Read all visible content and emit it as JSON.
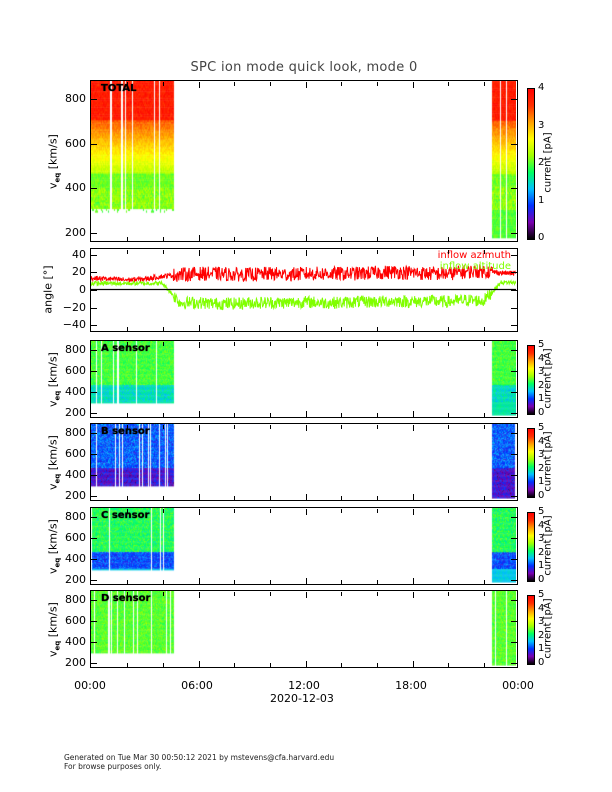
{
  "title": "SPC ion mode quick look, mode 0",
  "x_axis": {
    "ticks": [
      "00:00",
      "06:00",
      "12:00",
      "18:00",
      "00:00"
    ],
    "date_label": "2020-12-03"
  },
  "footer": {
    "line1": "Generated on Tue Mar 30 00:50:12 2021 by mstevens@cfa.harvard.edu",
    "line2": "For browse purposes only."
  },
  "colormap": [
    "#000000",
    "#7a00b0",
    "#0030ff",
    "#00c0ff",
    "#00ff60",
    "#a0ff00",
    "#ffff00",
    "#ffa000",
    "#ff3000",
    "#ff0000"
  ],
  "chart_data": [
    {
      "type": "heatmap",
      "id": "total",
      "label": "TOTAL",
      "ylabel": "v",
      "ylabel_sub": "eq",
      "ylabel_unit": "[km/s]",
      "yticks": [
        "200",
        "400",
        "600",
        "800"
      ],
      "ylim": [
        165,
        880
      ],
      "xlim_hours": [
        0,
        24
      ],
      "data_intervals_hours": [
        [
          0,
          4.65
        ],
        [
          22.5,
          24
        ]
      ],
      "colorbar": {
        "label": "current [pA]",
        "range": [
          0,
          4
        ],
        "ticks": [
          "0",
          "1",
          "2",
          "3",
          "4"
        ]
      },
      "profile": "total"
    },
    {
      "type": "line",
      "id": "angle",
      "ylabel": "angle [°]",
      "yticks": [
        "-40",
        "-20",
        "0",
        "20",
        "40"
      ],
      "ylim": [
        -46,
        46
      ],
      "xlim_hours": [
        0,
        24
      ],
      "reference_line": 0,
      "series": [
        {
          "name": "inflow azimuth",
          "color": "#ff0000",
          "hourly_mean": [
            13,
            12,
            11,
            12,
            15,
            17,
            18,
            18,
            17,
            17,
            18,
            17,
            18,
            18,
            18,
            18,
            19,
            20,
            19,
            18,
            18,
            20,
            21,
            19,
            18
          ],
          "spread": 8,
          "clip_max": 29
        },
        {
          "name": "inflow altitude",
          "color": "#80ff00",
          "hourly_mean": [
            7,
            7,
            7,
            7,
            7,
            -15,
            -15,
            -16,
            -16,
            -15,
            -15,
            -15,
            -14,
            -15,
            -15,
            -14,
            -14,
            -13,
            -14,
            -13,
            -14,
            -12,
            -13,
            8,
            8
          ],
          "spread": 7,
          "clip_min": -28
        }
      ]
    },
    {
      "type": "heatmap",
      "id": "A",
      "label": "A sensor",
      "ylabel": "v",
      "ylabel_sub": "eq",
      "ylabel_unit": "[km/s]",
      "yticks": [
        "200",
        "400",
        "600",
        "800"
      ],
      "ylim": [
        165,
        880
      ],
      "xlim_hours": [
        0,
        24
      ],
      "data_intervals_hours": [
        [
          0,
          4.65
        ],
        [
          22.5,
          24
        ]
      ],
      "colorbar": {
        "label": "current [pA]",
        "range": [
          0,
          5
        ],
        "ticks": [
          "0",
          "1",
          "2",
          "3",
          "4",
          "5"
        ]
      },
      "profile": "A"
    },
    {
      "type": "heatmap",
      "id": "B",
      "label": "B sensor",
      "ylabel": "v",
      "ylabel_sub": "eq",
      "ylabel_unit": "[km/s]",
      "yticks": [
        "200",
        "400",
        "600",
        "800"
      ],
      "ylim": [
        165,
        880
      ],
      "xlim_hours": [
        0,
        24
      ],
      "data_intervals_hours": [
        [
          0,
          4.65
        ],
        [
          22.5,
          24
        ]
      ],
      "colorbar": {
        "label": "current [pA]",
        "range": [
          0,
          5
        ],
        "ticks": [
          "0",
          "1",
          "2",
          "3",
          "4",
          "5"
        ]
      },
      "profile": "B"
    },
    {
      "type": "heatmap",
      "id": "C",
      "label": "C sensor",
      "ylabel": "v",
      "ylabel_sub": "eq",
      "ylabel_unit": "[km/s]",
      "yticks": [
        "200",
        "400",
        "600",
        "800"
      ],
      "ylim": [
        165,
        880
      ],
      "xlim_hours": [
        0,
        24
      ],
      "data_intervals_hours": [
        [
          0,
          4.65
        ],
        [
          22.5,
          24
        ]
      ],
      "colorbar": {
        "label": "current [pA]",
        "range": [
          0,
          5
        ],
        "ticks": [
          "0",
          "1",
          "2",
          "3",
          "4",
          "5"
        ]
      },
      "profile": "C"
    },
    {
      "type": "heatmap",
      "id": "D",
      "label": "D sensor",
      "ylabel": "v",
      "ylabel_sub": "eq",
      "ylabel_unit": "[km/s]",
      "yticks": [
        "200",
        "400",
        "600",
        "800"
      ],
      "ylim": [
        165,
        880
      ],
      "xlim_hours": [
        0,
        24
      ],
      "data_intervals_hours": [
        [
          0,
          4.65
        ],
        [
          22.5,
          24
        ]
      ],
      "colorbar": {
        "label": "current [pA]",
        "range": [
          0,
          5
        ],
        "ticks": [
          "0",
          "1",
          "2",
          "3",
          "4",
          "5"
        ]
      },
      "profile": "D"
    }
  ]
}
